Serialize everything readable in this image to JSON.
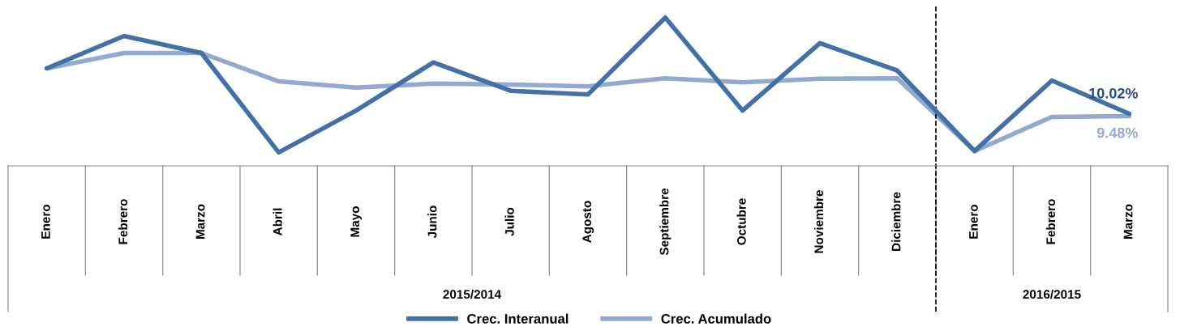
{
  "chart_data": {
    "type": "line",
    "categories": [
      "Enero",
      "Febrero",
      "Marzo",
      "Abril",
      "Mayo",
      "Junio",
      "Julio",
      "Agosto",
      "Septiembre",
      "Octubre",
      "Noviembre",
      "Diciembre",
      "Enero",
      "Febrero",
      "Marzo"
    ],
    "series": [
      {
        "name": "Crec. Interanual",
        "color": "#4470a8",
        "values": [
          20.1,
          27.3,
          23.5,
          1.4,
          10.7,
          21.4,
          15.1,
          14.3,
          31.4,
          10.7,
          25.7,
          19.6,
          1.7,
          17.4,
          10.02
        ],
        "value_labels": [
          null,
          null,
          null,
          null,
          null,
          null,
          null,
          null,
          null,
          null,
          null,
          null,
          null,
          null,
          "10.02%"
        ]
      },
      {
        "name": "Crec. Acumulado",
        "color": "#92a9d0",
        "values": [
          20.1,
          23.5,
          23.5,
          17.2,
          15.8,
          16.7,
          16.5,
          16.1,
          17.9,
          17.0,
          17.8,
          17.9,
          1.7,
          9.3,
          9.48
        ],
        "value_labels": [
          null,
          null,
          null,
          null,
          null,
          null,
          null,
          null,
          null,
          null,
          null,
          null,
          null,
          null,
          "9.48%"
        ]
      }
    ],
    "annotations": [
      "2015/2014",
      "2016/2015"
    ],
    "legend": "bottom",
    "marker": "none",
    "line_style": "solid"
  }
}
